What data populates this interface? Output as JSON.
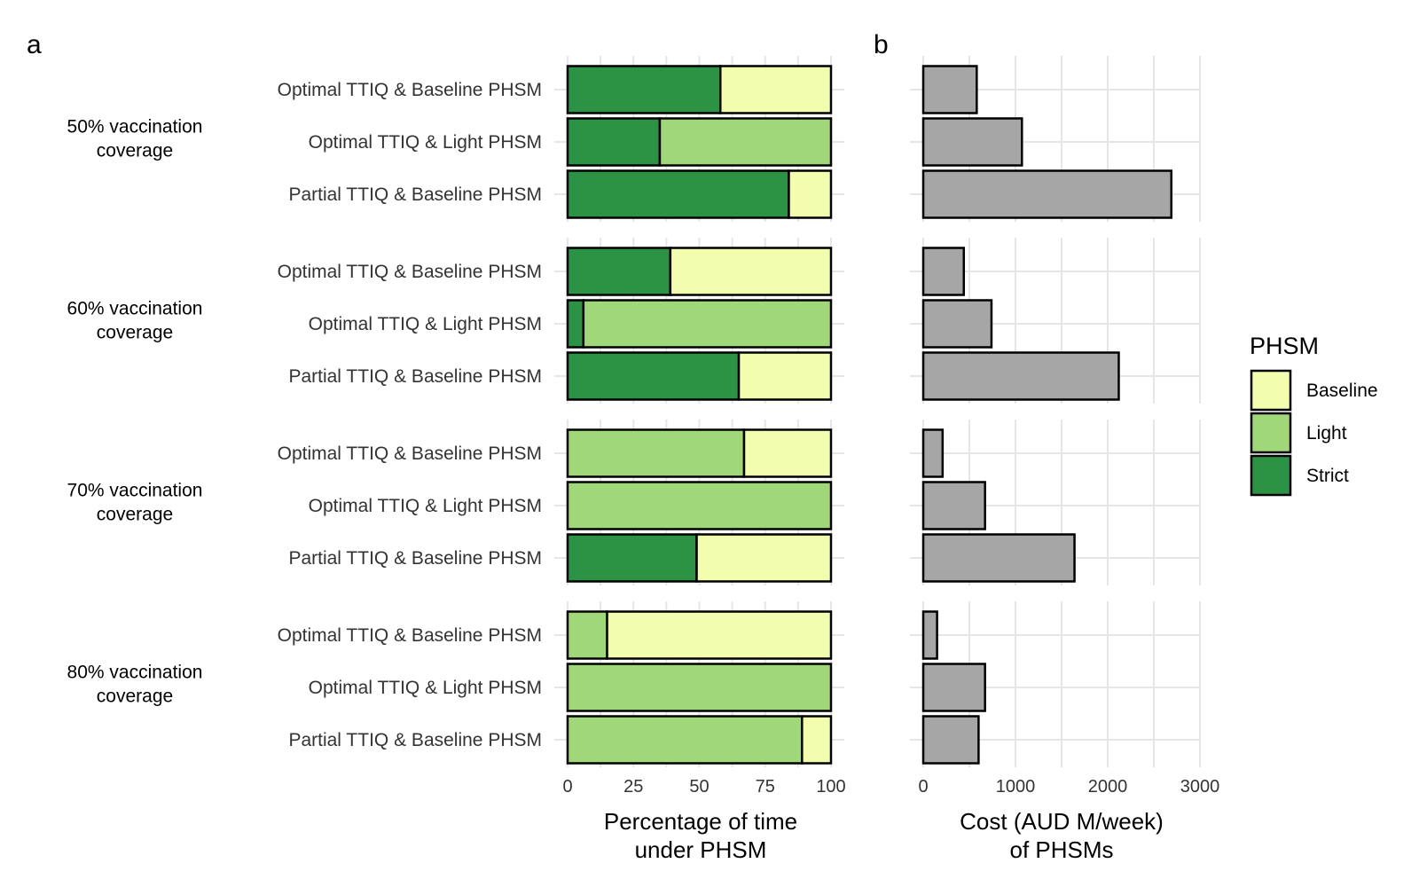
{
  "panel_labels": {
    "a": "a",
    "b": "b"
  },
  "colors": {
    "Baseline": "#f2fdad",
    "Light": "#9fd779",
    "Strict": "#2c9344",
    "Cost": "#a6a6a6"
  },
  "legend": {
    "title": "PHSM",
    "items": [
      {
        "name": "Baseline",
        "color": "#f2fdad"
      },
      {
        "name": "Light",
        "color": "#9fd779"
      },
      {
        "name": "Strict",
        "color": "#2c9344"
      }
    ]
  },
  "chart_data": [
    {
      "type": "bar",
      "orientation": "horizontal",
      "stacked": true,
      "panel": "a",
      "xlabel": "Percentage of time\nunder PHSM",
      "xlim": [
        0,
        100
      ],
      "xticks": [
        0,
        25,
        50,
        75,
        100
      ],
      "legend_position": "right",
      "grid": true,
      "groups": [
        {
          "label": "50% vaccination\ncoverage",
          "rows": [
            {
              "label": "Optimal TTIQ & Baseline PHSM",
              "Strict": 58,
              "Light": 0,
              "Baseline": 42
            },
            {
              "label": "Optimal TTIQ & Light PHSM",
              "Strict": 35,
              "Light": 65,
              "Baseline": 0
            },
            {
              "label": "Partial TTIQ & Baseline PHSM",
              "Strict": 84,
              "Light": 0,
              "Baseline": 16
            }
          ]
        },
        {
          "label": "60% vaccination\ncoverage",
          "rows": [
            {
              "label": "Optimal TTIQ & Baseline PHSM",
              "Strict": 39,
              "Light": 0,
              "Baseline": 61
            },
            {
              "label": "Optimal TTIQ & Light PHSM",
              "Strict": 6,
              "Light": 94,
              "Baseline": 0
            },
            {
              "label": "Partial TTIQ & Baseline PHSM",
              "Strict": 65,
              "Light": 0,
              "Baseline": 35
            }
          ]
        },
        {
          "label": "70% vaccination\ncoverage",
          "rows": [
            {
              "label": "Optimal TTIQ & Baseline PHSM",
              "Strict": 0,
              "Light": 67,
              "Baseline": 33
            },
            {
              "label": "Optimal TTIQ & Light PHSM",
              "Strict": 0,
              "Light": 100,
              "Baseline": 0
            },
            {
              "label": "Partial TTIQ & Baseline PHSM",
              "Strict": 49,
              "Light": 0,
              "Baseline": 51
            }
          ]
        },
        {
          "label": "80% vaccination\ncoverage",
          "rows": [
            {
              "label": "Optimal TTIQ & Baseline PHSM",
              "Strict": 0,
              "Light": 15,
              "Baseline": 85
            },
            {
              "label": "Optimal TTIQ & Light PHSM",
              "Strict": 0,
              "Light": 100,
              "Baseline": 0
            },
            {
              "label": "Partial TTIQ & Baseline PHSM",
              "Strict": 0,
              "Light": 89,
              "Baseline": 11
            }
          ]
        }
      ]
    },
    {
      "type": "bar",
      "orientation": "horizontal",
      "panel": "b",
      "xlabel": "Cost (AUD M/week)\nof PHSMs",
      "xlim": [
        0,
        3000
      ],
      "xticks": [
        0,
        1000,
        2000,
        3000
      ],
      "grid": true,
      "groups": [
        {
          "values": [
            580,
            1070,
            2690
          ]
        },
        {
          "values": [
            440,
            740,
            2120
          ]
        },
        {
          "values": [
            210,
            670,
            1640
          ]
        },
        {
          "values": [
            150,
            670,
            600
          ]
        }
      ]
    }
  ]
}
